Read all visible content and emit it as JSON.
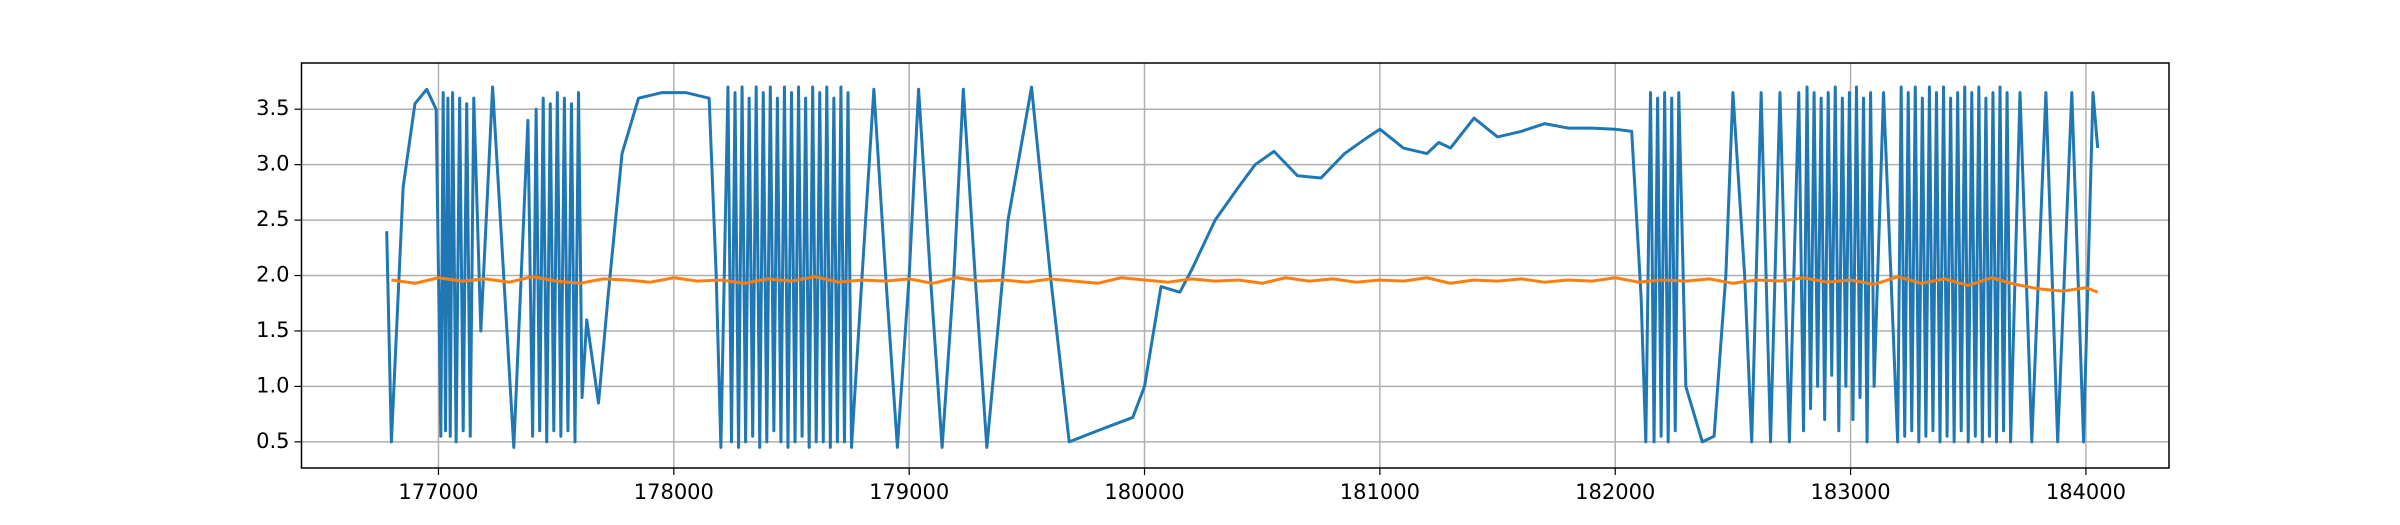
{
  "chart_data": {
    "type": "line",
    "grid": true,
    "xlim": [
      176418,
      184353
    ],
    "ylim": [
      0.264,
      3.917
    ],
    "xticks": [
      177000,
      178000,
      179000,
      180000,
      181000,
      182000,
      183000,
      184000
    ],
    "yticks": [
      0.5,
      {
        "value": 1.0,
        "label": "1.0"
      },
      1.5,
      {
        "value": 2.0,
        "label": "2.0"
      },
      2.5,
      {
        "value": 3.0,
        "label": "3.0"
      },
      3.5
    ],
    "series": [
      {
        "color": "#1f77b4",
        "x": [
          176780,
          176800,
          176850,
          176900,
          176950,
          176990,
          177010,
          177020,
          177030,
          177040,
          177050,
          177060,
          177075,
          177090,
          177105,
          177120,
          177135,
          177150,
          177180,
          177230,
          177320,
          177380,
          177400,
          177415,
          177430,
          177445,
          177460,
          177475,
          177490,
          177505,
          177520,
          177535,
          177550,
          177565,
          177580,
          177595,
          177610,
          177630,
          177680,
          177720,
          177780,
          177850,
          177950,
          178050,
          178150,
          178180,
          178200,
          178230,
          178245,
          178260,
          178275,
          178290,
          178305,
          178320,
          178335,
          178350,
          178365,
          178380,
          178395,
          178410,
          178425,
          178440,
          178455,
          178470,
          178485,
          178500,
          178515,
          178530,
          178545,
          178560,
          178575,
          178590,
          178605,
          178620,
          178635,
          178650,
          178665,
          178680,
          178695,
          178710,
          178725,
          178740,
          178755,
          178800,
          178850,
          178900,
          178950,
          179000,
          179040,
          179090,
          179140,
          179190,
          179230,
          179280,
          179330,
          179420,
          179520,
          179600,
          179680,
          179800,
          179950,
          180000,
          180070,
          180150,
          180200,
          180300,
          180400,
          180470,
          180550,
          180650,
          180750,
          180850,
          180950,
          181000,
          181100,
          181200,
          181250,
          181300,
          181400,
          181500,
          181600,
          181700,
          181800,
          181900,
          182000,
          182070,
          182110,
          182130,
          182150,
          182165,
          182180,
          182195,
          182210,
          182225,
          182240,
          182255,
          182270,
          182300,
          182370,
          182420,
          182470,
          182500,
          182550,
          182580,
          182620,
          182660,
          182700,
          182740,
          182780,
          182800,
          182815,
          182830,
          182845,
          182860,
          182875,
          182890,
          182905,
          182920,
          182935,
          182950,
          182965,
          182980,
          182995,
          183010,
          183025,
          183040,
          183055,
          183070,
          183085,
          183100,
          183140,
          183200,
          183215,
          183230,
          183245,
          183260,
          183275,
          183290,
          183305,
          183320,
          183335,
          183350,
          183365,
          183380,
          183395,
          183410,
          183425,
          183440,
          183455,
          183470,
          183485,
          183500,
          183515,
          183530,
          183545,
          183560,
          183575,
          183590,
          183605,
          183620,
          183635,
          183650,
          183665,
          183680,
          183720,
          183770,
          183830,
          183880,
          183940,
          183990,
          184030,
          184050
        ],
        "values": [
          2.4,
          0.5,
          2.8,
          3.55,
          3.68,
          3.5,
          0.55,
          3.65,
          0.6,
          3.6,
          0.55,
          3.65,
          0.5,
          3.6,
          0.6,
          3.55,
          0.55,
          3.6,
          1.5,
          3.7,
          0.45,
          3.4,
          0.55,
          3.5,
          0.6,
          3.6,
          0.5,
          3.55,
          0.6,
          3.65,
          0.55,
          3.6,
          0.6,
          3.55,
          0.5,
          3.65,
          0.9,
          1.6,
          0.85,
          1.8,
          3.1,
          3.6,
          3.65,
          3.65,
          3.6,
          2.0,
          0.45,
          3.7,
          0.5,
          3.65,
          0.45,
          3.7,
          0.5,
          3.6,
          0.55,
          3.7,
          0.45,
          3.65,
          0.5,
          3.7,
          0.6,
          3.6,
          0.5,
          3.7,
          0.45,
          3.65,
          0.5,
          3.7,
          0.55,
          3.6,
          0.45,
          3.7,
          0.5,
          3.65,
          0.5,
          3.7,
          0.45,
          3.6,
          0.5,
          3.7,
          0.5,
          3.65,
          0.45,
          2.0,
          3.68,
          2.0,
          0.45,
          2.0,
          3.68,
          2.0,
          0.45,
          2.0,
          3.68,
          2.0,
          0.45,
          2.5,
          3.7,
          2.0,
          0.5,
          0.6,
          0.72,
          1.0,
          1.9,
          1.85,
          2.05,
          2.5,
          2.8,
          3.0,
          3.12,
          2.9,
          2.88,
          3.1,
          3.25,
          3.32,
          3.15,
          3.1,
          3.2,
          3.15,
          3.42,
          3.25,
          3.3,
          3.37,
          3.33,
          3.33,
          3.32,
          3.3,
          1.8,
          0.5,
          3.65,
          0.5,
          3.6,
          0.55,
          3.65,
          0.5,
          3.6,
          0.6,
          3.65,
          1.0,
          0.5,
          0.55,
          2.0,
          3.65,
          2.0,
          0.5,
          3.65,
          0.5,
          3.65,
          0.5,
          3.65,
          0.6,
          3.7,
          0.8,
          3.65,
          1.0,
          3.6,
          0.7,
          3.65,
          1.1,
          3.7,
          0.6,
          3.6,
          1.0,
          3.65,
          0.7,
          3.7,
          0.9,
          3.6,
          0.5,
          3.65,
          1.0,
          3.65,
          0.5,
          3.7,
          0.55,
          3.65,
          0.6,
          3.7,
          0.5,
          3.6,
          0.55,
          3.7,
          0.6,
          3.65,
          0.5,
          3.7,
          0.55,
          3.6,
          0.5,
          3.65,
          0.6,
          3.7,
          0.5,
          3.65,
          0.55,
          3.7,
          0.5,
          3.6,
          0.55,
          3.65,
          0.5,
          3.7,
          0.6,
          3.65,
          0.5,
          3.65,
          0.5,
          3.65,
          0.5,
          3.65,
          0.5,
          3.65,
          3.15
        ]
      },
      {
        "color": "#ff7f0e",
        "x": [
          176800,
          176900,
          177000,
          177100,
          177200,
          177300,
          177400,
          177500,
          177600,
          177700,
          177800,
          177900,
          178000,
          178100,
          178200,
          178300,
          178400,
          178500,
          178600,
          178700,
          178800,
          178900,
          179000,
          179100,
          179200,
          179300,
          179400,
          179500,
          179600,
          179700,
          179800,
          179900,
          180000,
          180100,
          180200,
          180300,
          180400,
          180500,
          180600,
          180700,
          180800,
          180900,
          181000,
          181100,
          181200,
          181300,
          181400,
          181500,
          181600,
          181700,
          181800,
          181900,
          182000,
          182100,
          182200,
          182300,
          182400,
          182500,
          182600,
          182700,
          182800,
          182900,
          183000,
          183100,
          183200,
          183300,
          183400,
          183500,
          183600,
          183700,
          183800,
          183900,
          184000,
          184050
        ],
        "values": [
          1.96,
          1.93,
          1.98,
          1.95,
          1.97,
          1.94,
          1.99,
          1.95,
          1.93,
          1.97,
          1.96,
          1.94,
          1.98,
          1.95,
          1.96,
          1.93,
          1.97,
          1.95,
          1.99,
          1.94,
          1.96,
          1.95,
          1.97,
          1.93,
          1.98,
          1.95,
          1.96,
          1.94,
          1.97,
          1.95,
          1.93,
          1.98,
          1.96,
          1.94,
          1.97,
          1.95,
          1.96,
          1.93,
          1.98,
          1.95,
          1.97,
          1.94,
          1.96,
          1.95,
          1.98,
          1.93,
          1.96,
          1.95,
          1.97,
          1.94,
          1.96,
          1.95,
          1.98,
          1.94,
          1.96,
          1.95,
          1.97,
          1.93,
          1.96,
          1.95,
          1.98,
          1.94,
          1.96,
          1.92,
          1.99,
          1.93,
          1.97,
          1.91,
          1.98,
          1.92,
          1.88,
          1.86,
          1.89,
          1.85
        ]
      }
    ]
  }
}
